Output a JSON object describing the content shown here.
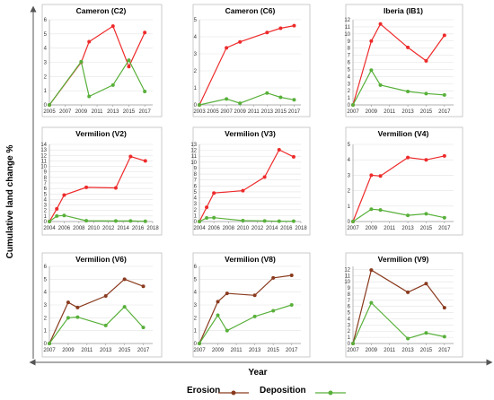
{
  "figure": {
    "ylabel": "Cumulative land change %",
    "xlabel": "Year",
    "legend": {
      "erosion": "Erosion",
      "deposition": "Deposition"
    }
  },
  "colors": {
    "frame": "#bfbfbf",
    "grid": "#e3e3e3",
    "axis_arrow": "#555555"
  },
  "chart_data": [
    {
      "id": "c2",
      "title": "Cameron (C2)",
      "type": "line",
      "xticks": [
        2005,
        2007,
        2009,
        2011,
        2013,
        2015,
        2017
      ],
      "xlim": [
        2005,
        2018
      ],
      "yticks": [
        0,
        1,
        2,
        3,
        4,
        5,
        6
      ],
      "ylim": [
        0,
        6
      ],
      "series": [
        {
          "name": "Erosion",
          "color": "#ee2a2a",
          "x": [
            2005,
            2009,
            2010,
            2013,
            2015,
            2017
          ],
          "y": [
            0,
            3.0,
            4.45,
            5.55,
            2.7,
            5.1
          ]
        },
        {
          "name": "Deposition",
          "color": "#58b03a",
          "x": [
            2005,
            2009,
            2010,
            2013,
            2015,
            2017
          ],
          "y": [
            0,
            3.05,
            0.6,
            1.4,
            3.15,
            0.95
          ]
        }
      ]
    },
    {
      "id": "c6",
      "title": "Cameron (C6)",
      "type": "line",
      "xticks": [
        2003,
        2005,
        2007,
        2009,
        2011,
        2013,
        2015,
        2017
      ],
      "xlim": [
        2003,
        2018
      ],
      "yticks": [
        0,
        1,
        2,
        3,
        4,
        5
      ],
      "ylim": [
        0,
        5
      ],
      "series": [
        {
          "name": "Erosion",
          "color": "#ee2a2a",
          "x": [
            2003,
            2007,
            2009,
            2013,
            2015,
            2017
          ],
          "y": [
            0,
            3.35,
            3.7,
            4.25,
            4.5,
            4.65
          ]
        },
        {
          "name": "Deposition",
          "color": "#58b03a",
          "x": [
            2003,
            2007,
            2009,
            2013,
            2015,
            2017
          ],
          "y": [
            0,
            0.35,
            0.1,
            0.7,
            0.45,
            0.3
          ]
        }
      ]
    },
    {
      "id": "ib1",
      "title": "Iberia (IB1)",
      "type": "line",
      "xticks": [
        2007,
        2009,
        2011,
        2013,
        2015,
        2017
      ],
      "xlim": [
        2007,
        2018
      ],
      "yticks": [
        0,
        1,
        2,
        3,
        4,
        5,
        6,
        7,
        8,
        9,
        10,
        11,
        12
      ],
      "ylim": [
        0,
        12
      ],
      "series": [
        {
          "name": "Erosion",
          "color": "#ee2a2a",
          "x": [
            2007,
            2009,
            2010,
            2013,
            2015,
            2017
          ],
          "y": [
            0,
            9.0,
            11.4,
            8.1,
            6.2,
            9.8
          ]
        },
        {
          "name": "Deposition",
          "color": "#58b03a",
          "x": [
            2007,
            2009,
            2010,
            2013,
            2015,
            2017
          ],
          "y": [
            0,
            4.9,
            2.8,
            1.9,
            1.6,
            1.4
          ]
        }
      ]
    },
    {
      "id": "v2",
      "title": "Vermilion (V2)",
      "type": "line",
      "xticks": [
        2004,
        2006,
        2008,
        2010,
        2012,
        2014,
        2016,
        2018
      ],
      "xlim": [
        2004,
        2018
      ],
      "yticks": [
        0,
        1,
        2,
        3,
        4,
        5,
        6,
        7,
        8,
        9,
        10,
        11,
        12,
        13,
        14
      ],
      "ylim": [
        0,
        14
      ],
      "series": [
        {
          "name": "Erosion",
          "color": "#ee2a2a",
          "x": [
            2004,
            2005,
            2006,
            2009,
            2013,
            2015,
            2017
          ],
          "y": [
            0,
            2.3,
            4.8,
            6.2,
            6.1,
            11.8,
            11.0
          ]
        },
        {
          "name": "Deposition",
          "color": "#58b03a",
          "x": [
            2004,
            2005,
            2006,
            2009,
            2013,
            2015,
            2017
          ],
          "y": [
            0,
            1.0,
            1.1,
            0.15,
            0.1,
            0.1,
            0.05
          ]
        }
      ]
    },
    {
      "id": "v3",
      "title": "Vermilion (V3)",
      "type": "line",
      "xticks": [
        2004,
        2006,
        2008,
        2010,
        2012,
        2014,
        2016,
        2018
      ],
      "xlim": [
        2004,
        2018
      ],
      "yticks": [
        0,
        1,
        2,
        3,
        4,
        5,
        6,
        7,
        8,
        9,
        10,
        11,
        12,
        13
      ],
      "ylim": [
        0,
        13
      ],
      "series": [
        {
          "name": "Erosion",
          "color": "#ee2a2a",
          "x": [
            2004,
            2005,
            2006,
            2010,
            2013,
            2015,
            2017
          ],
          "y": [
            0,
            2.4,
            4.8,
            5.2,
            7.5,
            12.1,
            10.9
          ]
        },
        {
          "name": "Deposition",
          "color": "#58b03a",
          "x": [
            2004,
            2005,
            2006,
            2010,
            2013,
            2015,
            2017
          ],
          "y": [
            0,
            0.6,
            0.65,
            0.15,
            0.1,
            0.05,
            0.05
          ]
        }
      ]
    },
    {
      "id": "v4",
      "title": "Vermilion (V4)",
      "type": "line",
      "xticks": [
        2007,
        2009,
        2011,
        2013,
        2015,
        2017
      ],
      "xlim": [
        2007,
        2018
      ],
      "yticks": [
        0,
        1,
        2,
        3,
        4,
        5
      ],
      "ylim": [
        0,
        5
      ],
      "series": [
        {
          "name": "Erosion",
          "color": "#ee2a2a",
          "x": [
            2007,
            2009,
            2010,
            2013,
            2015,
            2017
          ],
          "y": [
            0,
            3.0,
            2.95,
            4.15,
            4.0,
            4.25
          ]
        },
        {
          "name": "Deposition",
          "color": "#58b03a",
          "x": [
            2007,
            2009,
            2010,
            2013,
            2015,
            2017
          ],
          "y": [
            0,
            0.8,
            0.75,
            0.4,
            0.5,
            0.25
          ]
        }
      ]
    },
    {
      "id": "v6",
      "title": "Vermilion (V6)",
      "type": "line",
      "xticks": [
        2007,
        2009,
        2011,
        2013,
        2015,
        2017
      ],
      "xlim": [
        2007,
        2018
      ],
      "yticks": [
        0,
        1,
        2,
        3,
        4,
        5,
        6
      ],
      "ylim": [
        0,
        6
      ],
      "series": [
        {
          "name": "Erosion",
          "color": "#8a3a1e",
          "x": [
            2007,
            2009,
            2010,
            2013,
            2015,
            2017
          ],
          "y": [
            0,
            3.2,
            2.8,
            3.7,
            5.0,
            4.45
          ]
        },
        {
          "name": "Deposition",
          "color": "#58b03a",
          "x": [
            2007,
            2009,
            2010,
            2013,
            2015,
            2017
          ],
          "y": [
            0,
            2.0,
            2.05,
            1.4,
            2.85,
            1.25
          ]
        }
      ]
    },
    {
      "id": "v8",
      "title": "Vermilion (V8)",
      "type": "line",
      "xticks": [
        2007,
        2009,
        2011,
        2013,
        2015,
        2017
      ],
      "xlim": [
        2007,
        2018
      ],
      "yticks": [
        0,
        1,
        2,
        3,
        4,
        5,
        6
      ],
      "ylim": [
        0,
        6
      ],
      "series": [
        {
          "name": "Erosion",
          "color": "#8a3a1e",
          "x": [
            2007,
            2009,
            2010,
            2013,
            2015,
            2017
          ],
          "y": [
            0,
            3.25,
            3.9,
            3.75,
            5.1,
            5.3
          ]
        },
        {
          "name": "Deposition",
          "color": "#58b03a",
          "x": [
            2007,
            2009,
            2010,
            2013,
            2015,
            2017
          ],
          "y": [
            0,
            2.2,
            1.0,
            2.1,
            2.55,
            3.0
          ]
        }
      ]
    },
    {
      "id": "v9",
      "title": "Vermilion (V9)",
      "type": "line",
      "xticks": [
        2007,
        2009,
        2011,
        2013,
        2015,
        2017
      ],
      "xlim": [
        2007,
        2018
      ],
      "yticks": [
        0,
        1,
        2,
        3,
        4,
        5,
        6,
        7,
        8,
        9,
        10,
        11,
        12
      ],
      "ylim": [
        0,
        12.5
      ],
      "series": [
        {
          "name": "Erosion",
          "color": "#8a3a1e",
          "x": [
            2007,
            2009,
            2013,
            2015,
            2017
          ],
          "y": [
            0,
            11.9,
            8.3,
            9.7,
            5.8
          ]
        },
        {
          "name": "Deposition",
          "color": "#58b03a",
          "x": [
            2007,
            2009,
            2013,
            2015,
            2017
          ],
          "y": [
            0,
            6.6,
            0.8,
            1.7,
            1.1
          ]
        }
      ]
    }
  ]
}
